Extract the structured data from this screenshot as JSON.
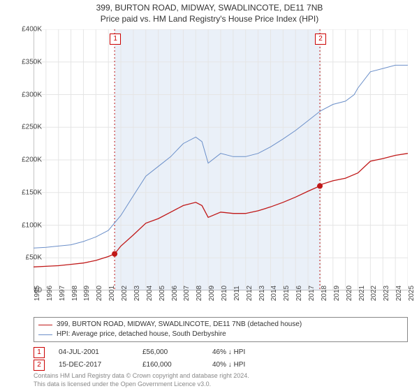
{
  "title_line1": "399, BURTON ROAD, MIDWAY, SWADLINCOTE, DE11 7NB",
  "title_line2": "Price paid vs. HM Land Registry's House Price Index (HPI)",
  "chart": {
    "type": "line",
    "background_color": "#ffffff",
    "plot_band_color": "#eaf0f8",
    "grid_color": "#e5e5e5",
    "axis_color": "#888888",
    "text_color": "#444444",
    "font_size_axis": 10,
    "ylim": [
      0,
      400000
    ],
    "ytick_step": 50000,
    "yticks": [
      "£0",
      "£50K",
      "£100K",
      "£150K",
      "£200K",
      "£250K",
      "£300K",
      "£350K",
      "£400K"
    ],
    "xlim": [
      1995,
      2025
    ],
    "xtick_step": 1,
    "xticks": [
      "1995",
      "1996",
      "1997",
      "1998",
      "1999",
      "2000",
      "2001",
      "2002",
      "2003",
      "2004",
      "2005",
      "2006",
      "2007",
      "2008",
      "2009",
      "2010",
      "2011",
      "2012",
      "2013",
      "2014",
      "2015",
      "2016",
      "2017",
      "2018",
      "2019",
      "2020",
      "2021",
      "2022",
      "2023",
      "2024",
      "2025"
    ],
    "plot_band_start": 2001.5,
    "plot_band_end": 2017.95,
    "series": [
      {
        "name": "hpi",
        "color": "#6b8fc9",
        "line_width": 1,
        "points": [
          [
            1995,
            65000
          ],
          [
            1996,
            66000
          ],
          [
            1997,
            68000
          ],
          [
            1998,
            70000
          ],
          [
            1999,
            75000
          ],
          [
            2000,
            82000
          ],
          [
            2001,
            92000
          ],
          [
            2002,
            115000
          ],
          [
            2003,
            145000
          ],
          [
            2004,
            175000
          ],
          [
            2005,
            190000
          ],
          [
            2006,
            205000
          ],
          [
            2007,
            225000
          ],
          [
            2008,
            235000
          ],
          [
            2008.5,
            228000
          ],
          [
            2009,
            195000
          ],
          [
            2010,
            210000
          ],
          [
            2011,
            205000
          ],
          [
            2012,
            205000
          ],
          [
            2013,
            210000
          ],
          [
            2014,
            220000
          ],
          [
            2015,
            232000
          ],
          [
            2016,
            245000
          ],
          [
            2017,
            260000
          ],
          [
            2018,
            275000
          ],
          [
            2019,
            285000
          ],
          [
            2020,
            290000
          ],
          [
            2020.7,
            300000
          ],
          [
            2021,
            310000
          ],
          [
            2022,
            335000
          ],
          [
            2023,
            340000
          ],
          [
            2024,
            345000
          ],
          [
            2025,
            345000
          ]
        ]
      },
      {
        "name": "price_paid",
        "color": "#c01818",
        "line_width": 1.3,
        "points": [
          [
            1995,
            36000
          ],
          [
            1996,
            37000
          ],
          [
            1997,
            38000
          ],
          [
            1998,
            40000
          ],
          [
            1999,
            42000
          ],
          [
            2000,
            46000
          ],
          [
            2001,
            52000
          ],
          [
            2001.5,
            56000
          ],
          [
            2002,
            68000
          ],
          [
            2003,
            85000
          ],
          [
            2004,
            103000
          ],
          [
            2005,
            110000
          ],
          [
            2006,
            120000
          ],
          [
            2007,
            130000
          ],
          [
            2008,
            135000
          ],
          [
            2008.5,
            130000
          ],
          [
            2009,
            112000
          ],
          [
            2010,
            120000
          ],
          [
            2011,
            118000
          ],
          [
            2012,
            118000
          ],
          [
            2013,
            122000
          ],
          [
            2014,
            128000
          ],
          [
            2015,
            135000
          ],
          [
            2016,
            143000
          ],
          [
            2017,
            152000
          ],
          [
            2017.95,
            160000
          ],
          [
            2018,
            162000
          ],
          [
            2019,
            168000
          ],
          [
            2020,
            172000
          ],
          [
            2021,
            180000
          ],
          [
            2022,
            198000
          ],
          [
            2023,
            202000
          ],
          [
            2024,
            207000
          ],
          [
            2025,
            210000
          ]
        ]
      }
    ],
    "markers": [
      {
        "label": "1",
        "x": 2001.5,
        "y": 56000,
        "dot_color": "#c01818",
        "line_color": "#c01818"
      },
      {
        "label": "2",
        "x": 2017.95,
        "y": 160000,
        "dot_color": "#c01818",
        "line_color": "#c01818"
      }
    ]
  },
  "legend": {
    "items": [
      {
        "color": "#c01818",
        "label": "399, BURTON ROAD, MIDWAY, SWADLINCOTE, DE11 7NB (detached house)"
      },
      {
        "color": "#6b8fc9",
        "label": "HPI: Average price, detached house, South Derbyshire"
      }
    ]
  },
  "sales": [
    {
      "num": "1",
      "date": "04-JUL-2001",
      "price": "£56,000",
      "delta": "46% ↓ HPI"
    },
    {
      "num": "2",
      "date": "15-DEC-2017",
      "price": "£160,000",
      "delta": "40% ↓ HPI"
    }
  ],
  "footer_line1": "Contains HM Land Registry data © Crown copyright and database right 2024.",
  "footer_line2": "This data is licensed under the Open Government Licence v3.0."
}
